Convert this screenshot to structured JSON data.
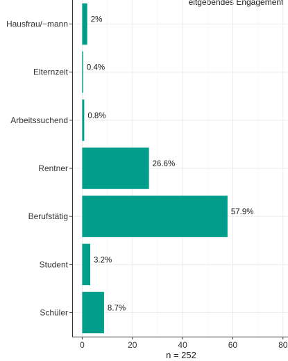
{
  "chart_data": {
    "type": "bar",
    "orientation": "horizontal",
    "title": "",
    "top_text_fragment": "eitgebendes Engagement",
    "categories": [
      "Hausfrau/−mann",
      "Elternzeit",
      "Arbeitssuchend",
      "Rentner",
      "Berufstätig",
      "Student",
      "Schüler"
    ],
    "values": [
      2.0,
      0.4,
      0.8,
      26.6,
      57.9,
      3.2,
      8.7
    ],
    "data_labels": [
      "2%",
      "0.4%",
      "0.8%",
      "26.6%",
      "57.9%",
      "3.2%",
      "8.7%"
    ],
    "xlabel": "n = 252",
    "ylabel": "",
    "xlim": [
      -4,
      82
    ],
    "x_ticks": [
      0,
      20,
      40,
      60,
      80
    ],
    "x_tick_labels": [
      "0",
      "20",
      "40",
      "60",
      "80"
    ],
    "grid": true,
    "legend": "none",
    "bar_color": "#009E8A",
    "panel_border_color": "#333333",
    "grid_color": "#EBEBEB"
  }
}
